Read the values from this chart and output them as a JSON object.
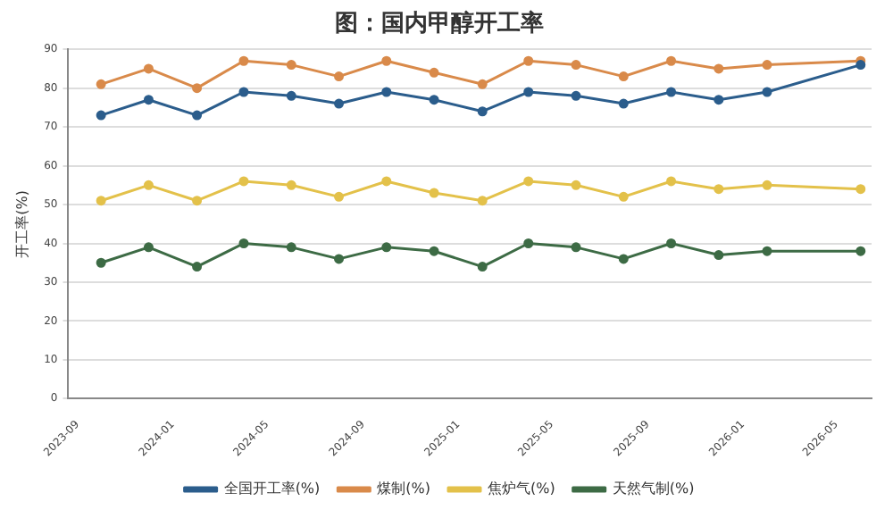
{
  "chart_data": {
    "type": "line",
    "title": "图：国内甲醇开工率",
    "ylabel": "开工率(%)",
    "x": [
      "2023-10",
      "2023-12",
      "2024-02",
      "2024-04",
      "2024-06",
      "2024-08",
      "2024-10",
      "2024-12",
      "2025-02",
      "2025-04",
      "2025-06",
      "2025-08",
      "2025-10",
      "2025-12",
      "2026-02",
      "2026-06"
    ],
    "series": [
      {
        "name": "全国开工率(%)",
        "color": "#2b5d8c",
        "values": [
          73,
          77,
          73,
          79,
          78,
          76,
          79,
          77,
          74,
          79,
          78,
          76,
          79,
          77,
          79,
          86
        ]
      },
      {
        "name": "煤制(%)",
        "color": "#d98a4a",
        "values": [
          81,
          85,
          80,
          87,
          86,
          83,
          87,
          84,
          81,
          87,
          86,
          83,
          87,
          85,
          86,
          87
        ]
      },
      {
        "name": "焦炉气(%)",
        "color": "#e3c14a",
        "values": [
          51,
          55,
          51,
          56,
          55,
          52,
          56,
          53,
          51,
          56,
          55,
          52,
          56,
          54,
          55,
          54
        ]
      },
      {
        "name": "天然气制(%)",
        "color": "#3d6b45",
        "values": [
          35,
          39,
          34,
          40,
          39,
          36,
          39,
          38,
          34,
          40,
          39,
          36,
          40,
          37,
          38,
          38
        ]
      }
    ],
    "xlim": [
      "2023-08-20",
      "2026-06-15"
    ],
    "xticks": [
      {
        "value": "2023-09",
        "label": "2023-09"
      },
      {
        "value": "2024-01",
        "label": "2024-01"
      },
      {
        "value": "2024-05",
        "label": "2024-05"
      },
      {
        "value": "2024-09",
        "label": "2024-09"
      },
      {
        "value": "2025-01",
        "label": "2025-01"
      },
      {
        "value": "2025-05",
        "label": "2025-05"
      },
      {
        "value": "2025-09",
        "label": "2025-09"
      },
      {
        "value": "2026-01",
        "label": "2026-01"
      },
      {
        "value": "2026-05",
        "label": "2026-05"
      }
    ],
    "ylim": [
      0,
      90
    ],
    "yticks": [
      0,
      10,
      20,
      30,
      40,
      50,
      60,
      70,
      80,
      90
    ],
    "grid": "y",
    "legend": "bottom",
    "marker": "circle",
    "line_style": "solid"
  }
}
